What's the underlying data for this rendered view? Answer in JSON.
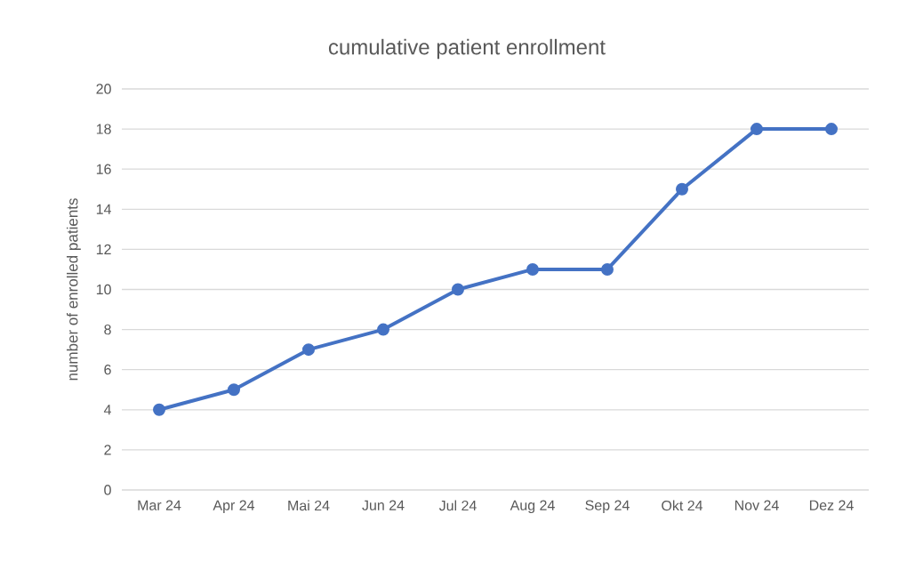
{
  "chart_data": {
    "type": "line",
    "title": "cumulative patient enrollment",
    "ylabel": "number of enrolled patients",
    "categories": [
      "Mar 24",
      "Apr 24",
      "Mai 24",
      "Jun 24",
      "Jul 24",
      "Aug 24",
      "Sep 24",
      "Okt 24",
      "Nov 24",
      "Dez 24"
    ],
    "values": [
      4,
      5,
      7,
      8,
      10,
      11,
      11,
      15,
      18,
      18
    ],
    "color": "#4472c4",
    "ylim": [
      0,
      20
    ],
    "yticks": [
      0,
      2,
      4,
      6,
      8,
      10,
      12,
      14,
      16,
      18,
      20
    ],
    "grid": "y",
    "marker": "circle",
    "line_style": "solid"
  }
}
